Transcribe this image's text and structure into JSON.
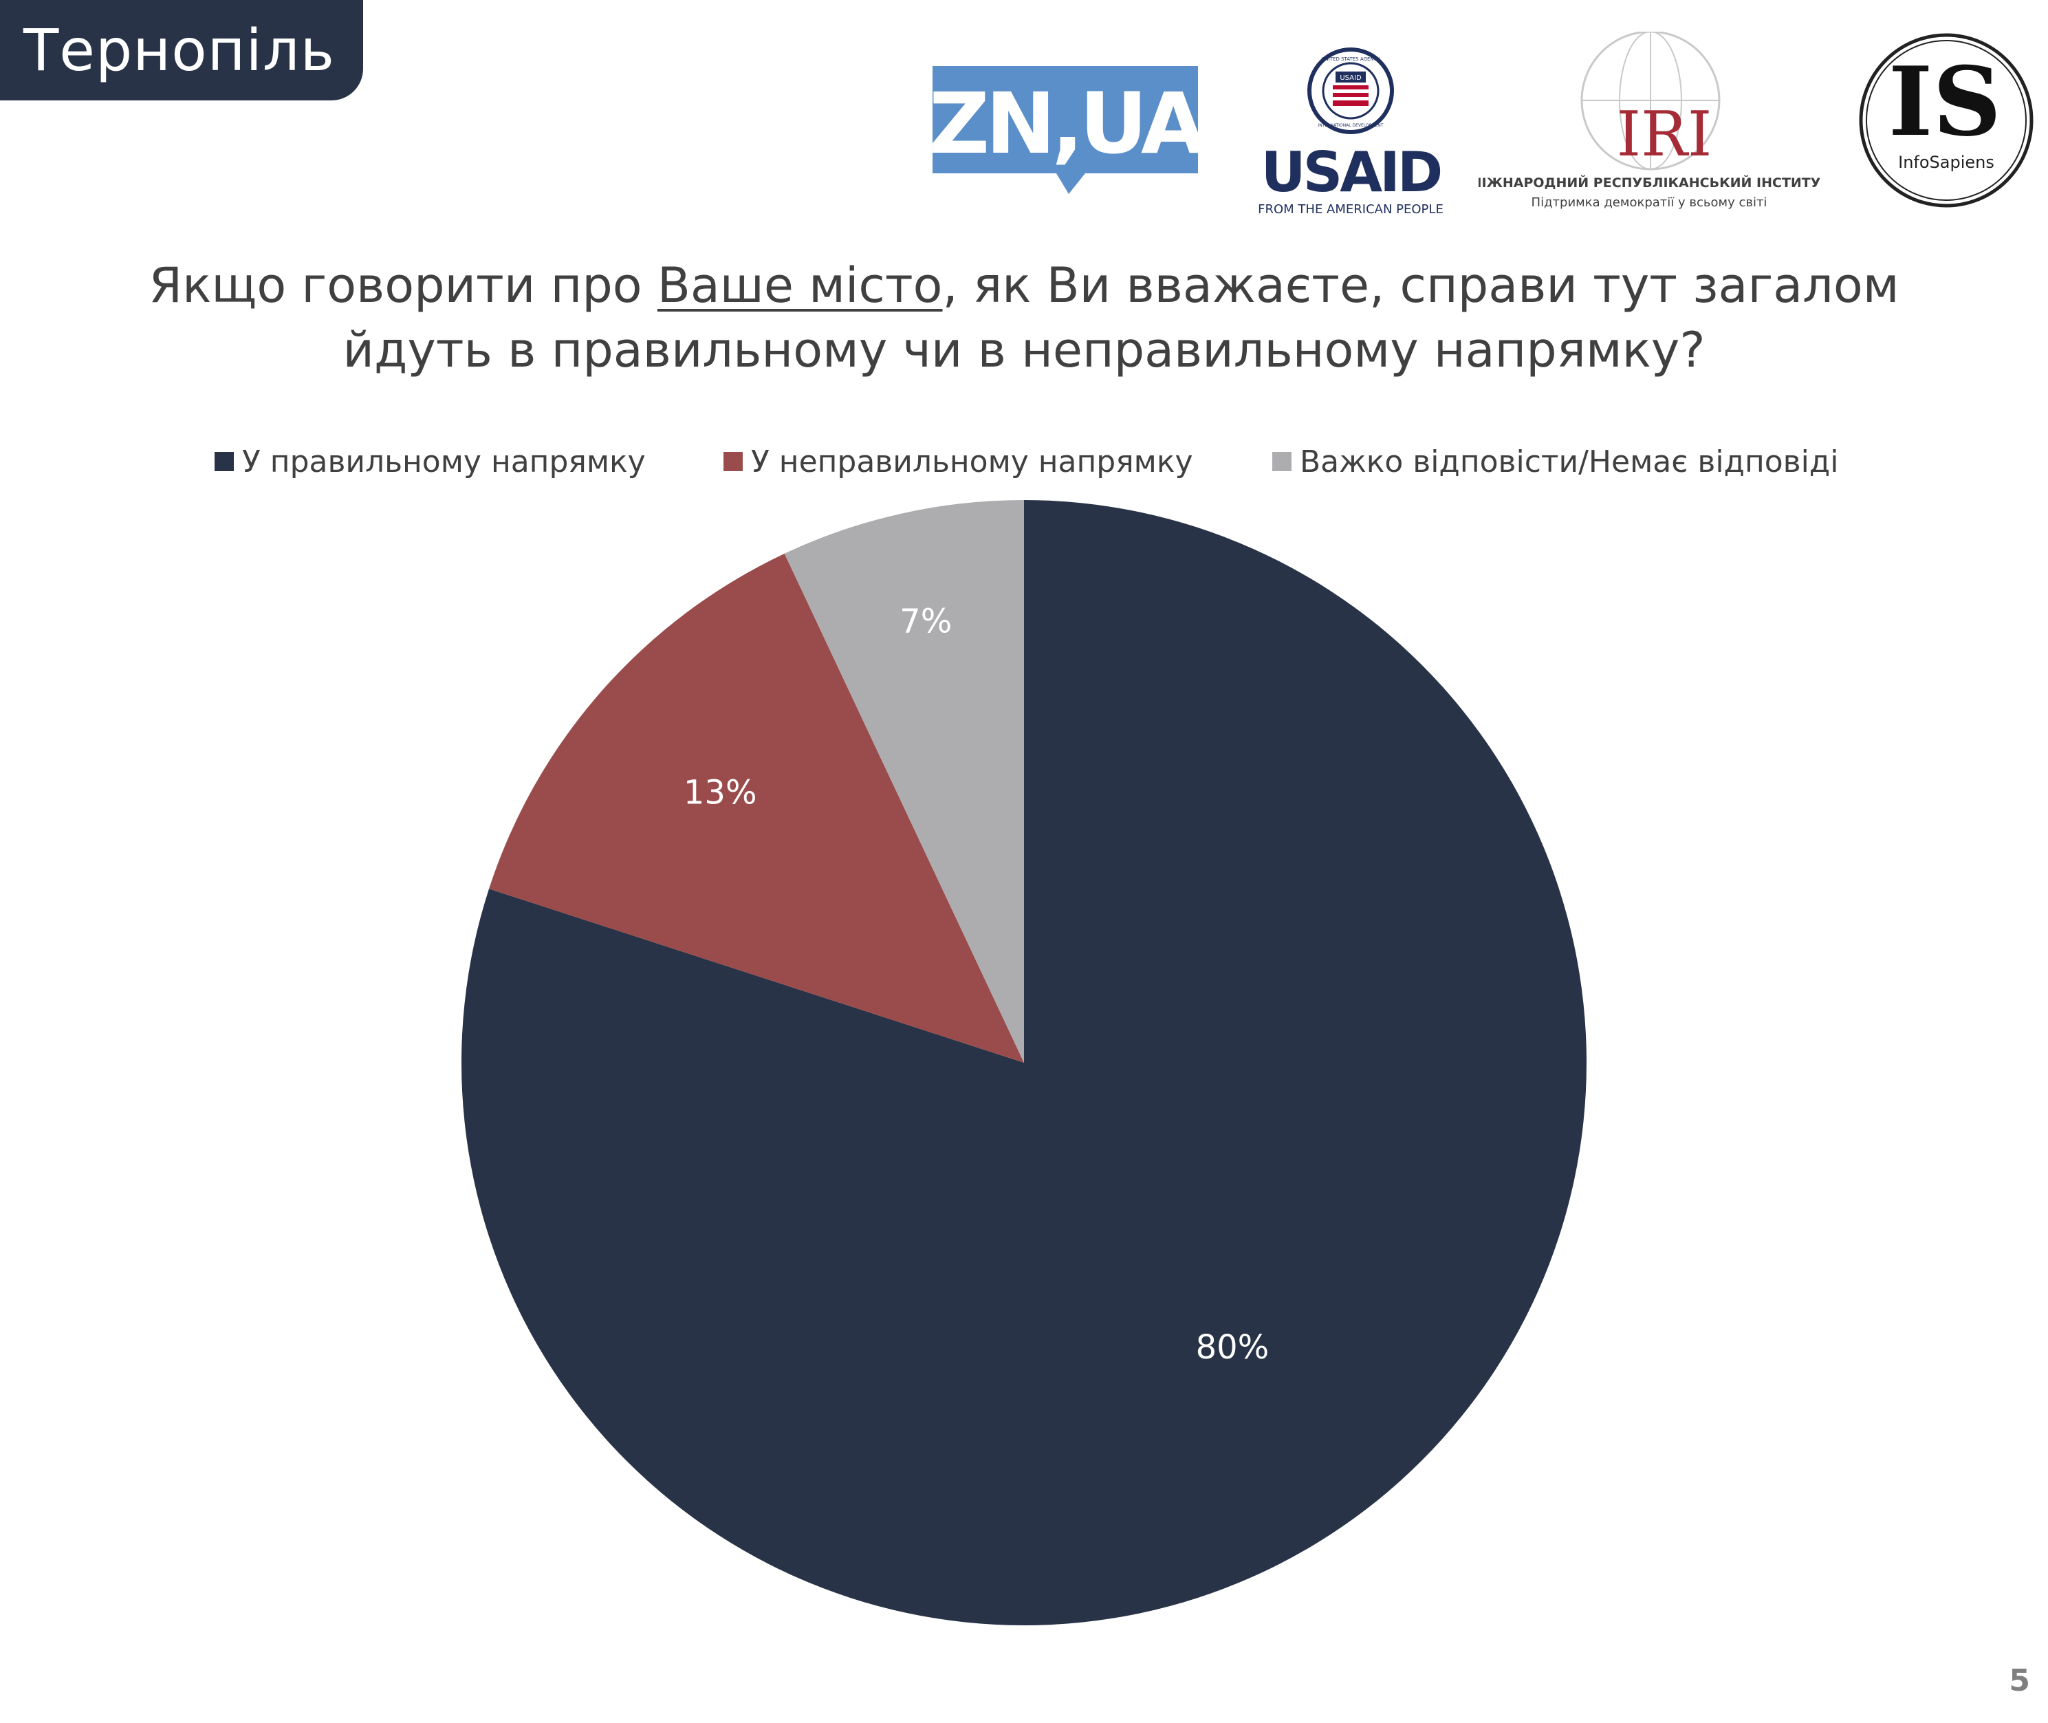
{
  "slide": {
    "city": "Тернопіль",
    "question_part1": "Якщо говорити про ",
    "question_underlined": "Ваше місто",
    "question_part2": ", як Ви вважаєте, справи тут загалом",
    "question_line2": "йдуть в правильному чи в неправильному напрямку?",
    "page_number": "5"
  },
  "logos": {
    "zn": "ZN,UA",
    "usaid_name": "USAID",
    "usaid_tagline": "FROM THE AMERICAN PEOPLE",
    "usaid_seal_top": "UNITED STATES AGENCY",
    "usaid_seal_badge": "USAID",
    "usaid_seal_bottom": "INTERNATIONAL DEVELOPMENT",
    "iri_name": "IRI",
    "iri_line1": "МІЖНАРОДНИЙ РЕСПУБЛІКАНСЬКИЙ ІНСТИТУТ",
    "iri_line2": "Підтримка демократії у всьому світі",
    "is_mark": "IS",
    "is_name": "InfoSapiens"
  },
  "colors": {
    "tab_bg": "#283347",
    "zn_blue": "#5b8fc9",
    "usaid_navy": "#1f2f5e",
    "usaid_red": "#ba0c2f",
    "iri_red": "#a52b37",
    "right_direction": "#283347",
    "wrong_direction": "#9a4c4c",
    "hard_to_say": "#adadb0"
  },
  "chart_data": {
    "type": "pie",
    "title": "",
    "legend_position": "top",
    "start_angle": "12 o'clock",
    "direction": "clockwise",
    "series": [
      {
        "name": "У правильному напрямку",
        "value": 80,
        "label": "80%",
        "color": "#283347"
      },
      {
        "name": "У неправильному напрямку",
        "value": 13,
        "label": "13%",
        "color": "#9a4c4c"
      },
      {
        "name": "Важко відповісти/Немає відповіді",
        "value": 7,
        "label": "7%",
        "color": "#adadb0"
      }
    ]
  }
}
